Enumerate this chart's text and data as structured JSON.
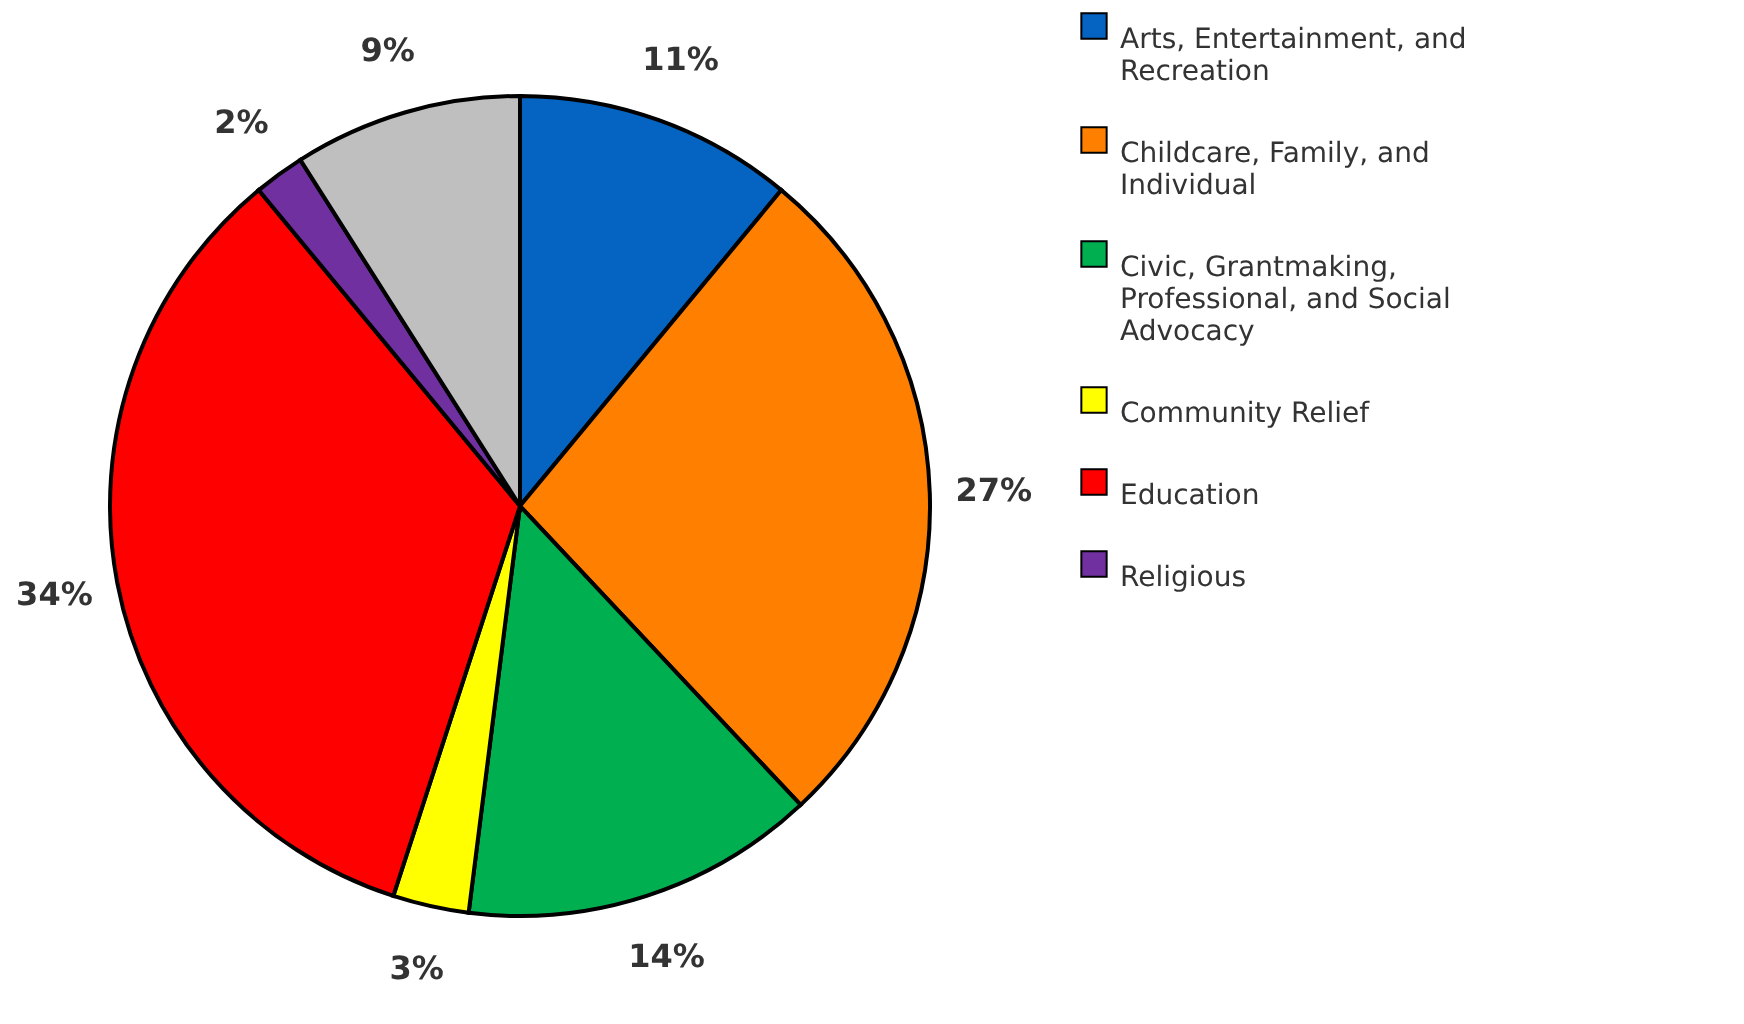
{
  "chart_data": {
    "type": "pie",
    "categories": [
      "Arts, Entertainment, and Recreation",
      "Childcare, Family, and Individual",
      "Civic, Grantmaking, Professional, and Social Advocacy",
      "Community Relief",
      "Education",
      "Religious",
      null
    ],
    "values": [
      11,
      27,
      14,
      3,
      34,
      2,
      9
    ],
    "colors": [
      "#0563c1",
      "#ff8000",
      "#00b050",
      "#ffff00",
      "#ff0000",
      "#7030a0",
      "#bfbfbf"
    ],
    "value_labels": [
      "11%",
      "27%",
      "14%",
      "3%",
      "34%",
      "2%",
      "9%"
    ],
    "legend": "right"
  }
}
